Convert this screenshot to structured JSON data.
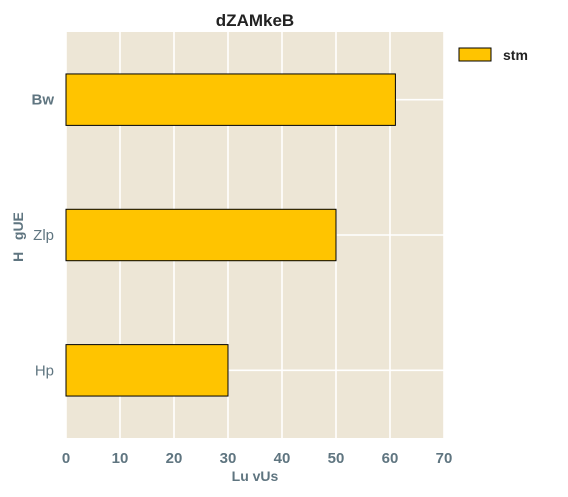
{
  "chart_data": {
    "type": "bar",
    "orientation": "horizontal",
    "title": "dZAMkeB",
    "xlabel": "Lu vUs",
    "ylabel": "H   gUE",
    "categories": [
      "Bw",
      "Zlp",
      "Hp"
    ],
    "series": [
      {
        "name": "stm",
        "values": [
          61,
          50,
          30
        ],
        "color": "#ffc400"
      }
    ],
    "xlim": [
      0,
      70
    ],
    "xticks": [
      0,
      10,
      20,
      30,
      40,
      50,
      60,
      70
    ],
    "grid": true,
    "legend_position": "top-right",
    "plot_background": "#ede6d6",
    "grid_color": "#ffffff",
    "bar_edge_color": "#000000"
  }
}
